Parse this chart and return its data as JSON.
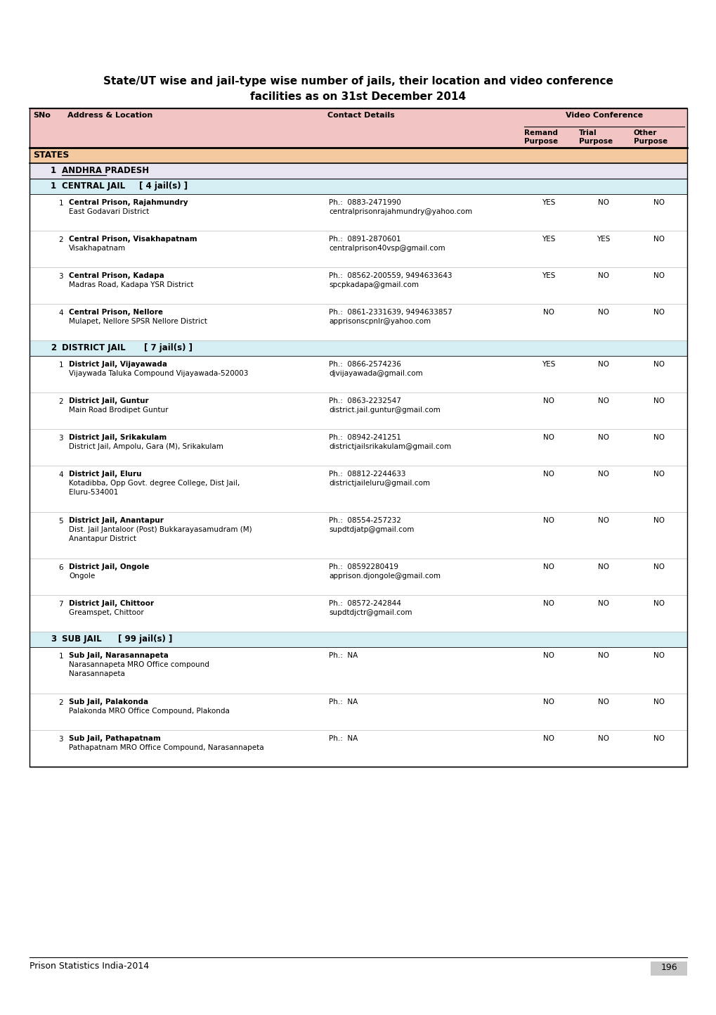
{
  "title_line1": "State/UT wise and jail-type wise number of jails, their location and video conference",
  "title_line2": "facilities as on 31st December 2014",
  "header_bg": "#f2c4c4",
  "states_bg": "#f5c9a0",
  "state_name_bg": "#e8e4f0",
  "jail_type_bg": "#d4eef4",
  "footer_text": "Prison Statistics India-2014",
  "footer_page": "196",
  "rows": [
    {
      "type": "section",
      "label": "STATES"
    },
    {
      "type": "state",
      "sno": "1",
      "label": "ANDHRA PRADESH"
    },
    {
      "type": "jail_type",
      "sno": "1",
      "label": "CENTRAL JAIL",
      "count": "[ 4 jail(s) ]"
    },
    {
      "type": "data",
      "sno": "1",
      "line1": "Central Prison, Rajahmundry",
      "line2": "East Godavari District",
      "ph": "Ph.:  0883-2471990",
      "email": "centralprisonrajahmundry@yahoo.com",
      "remand": "YES",
      "trial": "NO",
      "other": "NO"
    },
    {
      "type": "data",
      "sno": "2",
      "line1": "Central Prison, Visakhapatnam",
      "line2": "Visakhapatnam",
      "ph": "Ph.:  0891-2870601",
      "email": "centralprison40vsp@gmail.com",
      "remand": "YES",
      "trial": "YES",
      "other": "NO"
    },
    {
      "type": "data",
      "sno": "3",
      "line1": "Central Prison, Kadapa",
      "line2": "Madras Road, Kadapa YSR District",
      "ph": "Ph.:  08562-200559, 9494633643",
      "email": "spcpkadapa@gmail.com",
      "remand": "YES",
      "trial": "NO",
      "other": "NO"
    },
    {
      "type": "data",
      "sno": "4",
      "line1": "Central Prison, Nellore",
      "line2": "Mulapet, Nellore SPSR Nellore District",
      "ph": "Ph.:  0861-2331639, 9494633857",
      "email": "apprisonscpnlr@yahoo.com",
      "remand": "NO",
      "trial": "NO",
      "other": "NO"
    },
    {
      "type": "jail_type",
      "sno": "2",
      "label": "DISTRICT JAIL",
      "count": "[ 7 jail(s) ]"
    },
    {
      "type": "data",
      "sno": "1",
      "line1": "District Jail, Vijayawada",
      "line2": "Vijaywada Taluka Compound Vijayawada-520003",
      "ph": "Ph.:  0866-2574236",
      "email": "djvijayawada@gmail.com",
      "remand": "YES",
      "trial": "NO",
      "other": "NO"
    },
    {
      "type": "data",
      "sno": "2",
      "line1": "District Jail, Guntur",
      "line2": "Main Road Brodipet Guntur",
      "ph": "Ph.:  0863-2232547",
      "email": "district.jail.guntur@gmail.com",
      "remand": "NO",
      "trial": "NO",
      "other": "NO"
    },
    {
      "type": "data",
      "sno": "3",
      "line1": "District Jail, Srikakulam",
      "line2": "District Jail, Ampolu, Gara (M), Srikakulam",
      "ph": "Ph.:  08942-241251",
      "email": "districtjailsrikakulam@gmail.com",
      "remand": "NO",
      "trial": "NO",
      "other": "NO"
    },
    {
      "type": "data3",
      "sno": "4",
      "line1": "District Jail, Eluru",
      "line2": "Kotadibba, Opp Govt. degree College, Dist Jail,",
      "line3": "Eluru-534001",
      "ph": "Ph.:  08812-2244633",
      "email": "districtjaileluru@gmail.com",
      "remand": "NO",
      "trial": "NO",
      "other": "NO"
    },
    {
      "type": "data3",
      "sno": "5",
      "line1": "District Jail, Anantapur",
      "line2": "Dist. Jail Jantaloor (Post) Bukkarayasamudram (M)",
      "line3": "Anantapur District",
      "ph": "Ph.:  08554-257232",
      "email": "supdtdjatp@gmail.com",
      "remand": "NO",
      "trial": "NO",
      "other": "NO"
    },
    {
      "type": "data",
      "sno": "6",
      "line1": "District Jail, Ongole",
      "line2": "Ongole",
      "ph": "Ph.:  08592280419",
      "email": "apprison.djongole@gmail.com",
      "remand": "NO",
      "trial": "NO",
      "other": "NO"
    },
    {
      "type": "data",
      "sno": "7",
      "line1": "District Jail, Chittoor",
      "line2": "Greamspet, Chittoor",
      "ph": "Ph.:  08572-242844",
      "email": "supdtdjctr@gmail.com",
      "remand": "NO",
      "trial": "NO",
      "other": "NO"
    },
    {
      "type": "jail_type",
      "sno": "3",
      "label": "SUB JAIL",
      "count": "[ 99 jail(s) ]"
    },
    {
      "type": "data3",
      "sno": "1",
      "line1": "Sub Jail, Narasannapeta",
      "line2": "Narasannapeta MRO Office compound",
      "line3": "Narasannapeta",
      "ph": "Ph.:  NA",
      "email": "",
      "remand": "NO",
      "trial": "NO",
      "other": "NO"
    },
    {
      "type": "data",
      "sno": "2",
      "line1": "Sub Jail, Palakonda",
      "line2": "Palakonda MRO Office Compound, Plakonda",
      "ph": "Ph.:  NA",
      "email": "",
      "remand": "NO",
      "trial": "NO",
      "other": "NO"
    },
    {
      "type": "data",
      "sno": "3",
      "line1": "Sub Jail, Pathapatnam",
      "line2": "Pathapatnam MRO Office Compound, Narasannapeta",
      "ph": "Ph.:  NA",
      "email": "",
      "remand": "NO",
      "trial": "NO",
      "other": "NO"
    }
  ]
}
